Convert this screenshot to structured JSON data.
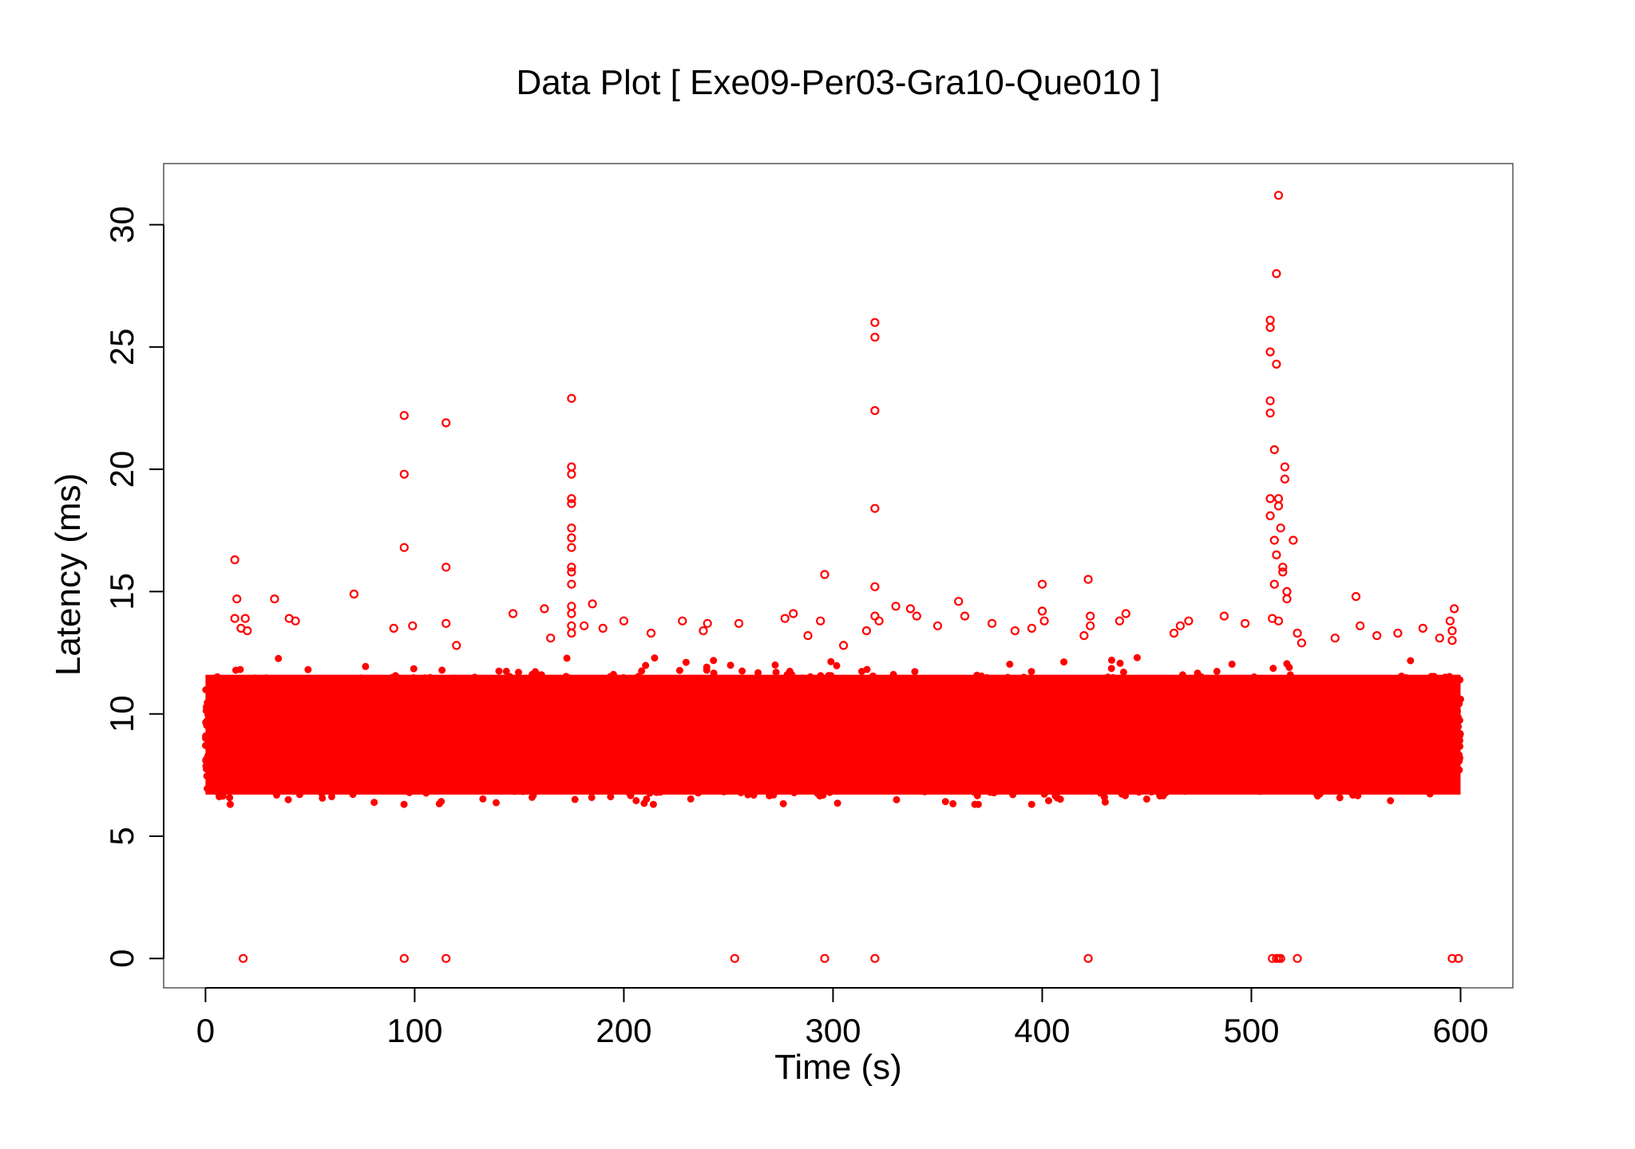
{
  "chart_data": {
    "type": "scatter",
    "title": "Data Plot [ Exe09-Per03-Gra10-Que010 ]",
    "xlabel": "Time (s)",
    "ylabel": "Latency (ms)",
    "xlim": [
      -20,
      625
    ],
    "ylim": [
      -1.2,
      32.5
    ],
    "x_ticks": [
      0,
      100,
      200,
      300,
      400,
      500,
      600
    ],
    "y_ticks": [
      0,
      5,
      10,
      15,
      20,
      25,
      30
    ],
    "x_tick_labels": [
      "0",
      "100",
      "200",
      "300",
      "400",
      "500",
      "600"
    ],
    "y_tick_labels": [
      "0",
      "5",
      "10",
      "15",
      "20",
      "25",
      "30"
    ],
    "grid": false,
    "legend": "none",
    "marker": "open-circle",
    "series": [
      {
        "color": "#ff0000",
        "dense_band": {
          "x_range": [
            0,
            600
          ],
          "y_range": [
            6.3,
            12.0
          ]
        },
        "points": [
          [
            18,
            0
          ],
          [
            95,
            0
          ],
          [
            115,
            0
          ],
          [
            253,
            0
          ],
          [
            296,
            0
          ],
          [
            320,
            0
          ],
          [
            422,
            0
          ],
          [
            510,
            0
          ],
          [
            512,
            0
          ],
          [
            513,
            0
          ],
          [
            514,
            0
          ],
          [
            522,
            0
          ],
          [
            596,
            0
          ],
          [
            599,
            0
          ],
          [
            14,
            16.3
          ],
          [
            15,
            14.7
          ],
          [
            14,
            13.9
          ],
          [
            17,
            13.5
          ],
          [
            19,
            13.9
          ],
          [
            20,
            13.4
          ],
          [
            33,
            14.7
          ],
          [
            40,
            13.9
          ],
          [
            43,
            13.8
          ],
          [
            71,
            14.9
          ],
          [
            90,
            13.5
          ],
          [
            95,
            22.2
          ],
          [
            95,
            19.8
          ],
          [
            95,
            16.8
          ],
          [
            99,
            13.6
          ],
          [
            115,
            21.9
          ],
          [
            115,
            16.0
          ],
          [
            115,
            13.7
          ],
          [
            120,
            12.8
          ],
          [
            147,
            14.1
          ],
          [
            162,
            14.3
          ],
          [
            165,
            13.1
          ],
          [
            175,
            22.9
          ],
          [
            175,
            20.1
          ],
          [
            175,
            19.8
          ],
          [
            175,
            18.8
          ],
          [
            175,
            18.6
          ],
          [
            175,
            17.6
          ],
          [
            175,
            17.2
          ],
          [
            175,
            16.8
          ],
          [
            175,
            16.0
          ],
          [
            175,
            15.8
          ],
          [
            175,
            15.3
          ],
          [
            175,
            14.4
          ],
          [
            175,
            14.1
          ],
          [
            175,
            13.6
          ],
          [
            175,
            13.3
          ],
          [
            181,
            13.6
          ],
          [
            185,
            14.5
          ],
          [
            190,
            13.5
          ],
          [
            200,
            13.8
          ],
          [
            213,
            13.3
          ],
          [
            228,
            13.8
          ],
          [
            238,
            13.4
          ],
          [
            240,
            13.7
          ],
          [
            255,
            13.7
          ],
          [
            277,
            13.9
          ],
          [
            281,
            14.1
          ],
          [
            288,
            13.2
          ],
          [
            294,
            13.8
          ],
          [
            296,
            15.7
          ],
          [
            305,
            12.8
          ],
          [
            316,
            13.4
          ],
          [
            320,
            26.0
          ],
          [
            320,
            25.4
          ],
          [
            320,
            22.4
          ],
          [
            320,
            18.4
          ],
          [
            320,
            15.2
          ],
          [
            320,
            14.0
          ],
          [
            322,
            13.8
          ],
          [
            330,
            14.4
          ],
          [
            337,
            14.3
          ],
          [
            340,
            14.0
          ],
          [
            350,
            13.6
          ],
          [
            360,
            14.6
          ],
          [
            363,
            14.0
          ],
          [
            376,
            13.7
          ],
          [
            387,
            13.4
          ],
          [
            395,
            13.5
          ],
          [
            400,
            15.3
          ],
          [
            400,
            14.2
          ],
          [
            401,
            13.8
          ],
          [
            420,
            13.2
          ],
          [
            422,
            15.5
          ],
          [
            423,
            14.0
          ],
          [
            423,
            13.6
          ],
          [
            437,
            13.8
          ],
          [
            440,
            14.1
          ],
          [
            463,
            13.3
          ],
          [
            466,
            13.6
          ],
          [
            470,
            13.8
          ],
          [
            487,
            14.0
          ],
          [
            497,
            13.7
          ],
          [
            509,
            26.1
          ],
          [
            509,
            25.8
          ],
          [
            509,
            24.8
          ],
          [
            509,
            22.8
          ],
          [
            509,
            22.3
          ],
          [
            509,
            18.8
          ],
          [
            509,
            18.1
          ],
          [
            511,
            20.8
          ],
          [
            512,
            28.0
          ],
          [
            512,
            24.3
          ],
          [
            511,
            17.1
          ],
          [
            512,
            16.5
          ],
          [
            513,
            31.2
          ],
          [
            513,
            18.8
          ],
          [
            513,
            18.5
          ],
          [
            514,
            17.6
          ],
          [
            515,
            16.0
          ],
          [
            515,
            15.8
          ],
          [
            516,
            20.1
          ],
          [
            516,
            19.6
          ],
          [
            517,
            15.0
          ],
          [
            517,
            14.7
          ],
          [
            511,
            15.3
          ],
          [
            510,
            13.9
          ],
          [
            513,
            13.8
          ],
          [
            520,
            17.1
          ],
          [
            522,
            13.3
          ],
          [
            524,
            12.9
          ],
          [
            540,
            13.1
          ],
          [
            550,
            14.8
          ],
          [
            552,
            13.6
          ],
          [
            560,
            13.2
          ],
          [
            570,
            13.3
          ],
          [
            582,
            13.5
          ],
          [
            590,
            13.1
          ],
          [
            595,
            13.8
          ],
          [
            597,
            14.3
          ],
          [
            596,
            13.4
          ],
          [
            596,
            13.0
          ]
        ]
      }
    ]
  }
}
